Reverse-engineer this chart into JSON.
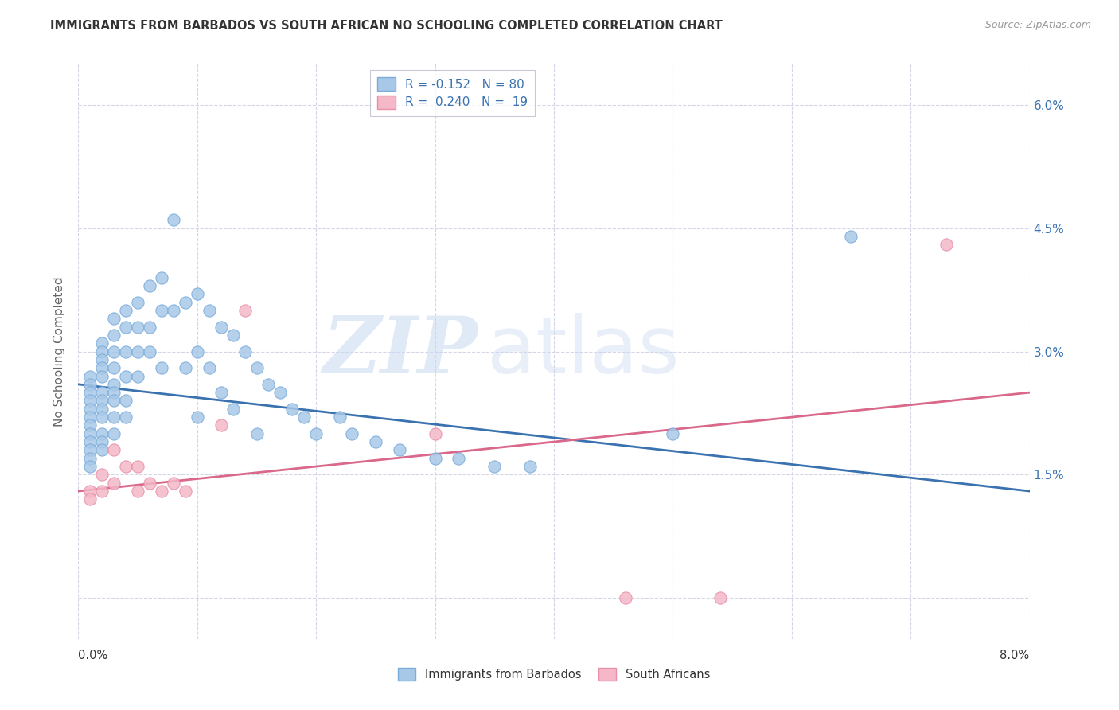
{
  "title": "IMMIGRANTS FROM BARBADOS VS SOUTH AFRICAN NO SCHOOLING COMPLETED CORRELATION CHART",
  "source": "Source: ZipAtlas.com",
  "ylabel": "No Schooling Completed",
  "xmin": 0.0,
  "xmax": 0.08,
  "ymin": -0.005,
  "ymax": 0.065,
  "blue_R": -0.152,
  "blue_N": 80,
  "pink_R": 0.24,
  "pink_N": 19,
  "blue_color": "#a8c8e8",
  "blue_edge_color": "#7aacda",
  "blue_line_color": "#3a72b0",
  "pink_color": "#f4b8c8",
  "pink_edge_color": "#e88faa",
  "pink_line_color": "#d9688a",
  "legend_text_color": "#3a72b0",
  "legend_label1": "R = -0.152   N = 80",
  "legend_label2": "R =  0.240   N =  19",
  "bottom_label1": "Immigrants from Barbados",
  "bottom_label2": "South Africans",
  "watermark_zip": "ZIP",
  "watermark_atlas": "atlas",
  "grid_color": "#d5d5e8",
  "background_color": "#ffffff",
  "right_ytick_vals": [
    0.0,
    0.015,
    0.03,
    0.045,
    0.06
  ],
  "right_yticklabels": [
    "",
    "1.5%",
    "3.0%",
    "4.5%",
    "6.0%"
  ],
  "xtick_vals": [
    0.0,
    0.01,
    0.02,
    0.03,
    0.04,
    0.05,
    0.06,
    0.07,
    0.08
  ],
  "blue_x": [
    0.001,
    0.001,
    0.001,
    0.001,
    0.001,
    0.001,
    0.001,
    0.001,
    0.001,
    0.001,
    0.001,
    0.001,
    0.002,
    0.002,
    0.002,
    0.002,
    0.002,
    0.002,
    0.002,
    0.002,
    0.002,
    0.002,
    0.002,
    0.002,
    0.003,
    0.003,
    0.003,
    0.003,
    0.003,
    0.003,
    0.003,
    0.003,
    0.003,
    0.004,
    0.004,
    0.004,
    0.004,
    0.004,
    0.004,
    0.005,
    0.005,
    0.005,
    0.005,
    0.006,
    0.006,
    0.006,
    0.007,
    0.007,
    0.007,
    0.008,
    0.008,
    0.009,
    0.009,
    0.01,
    0.01,
    0.01,
    0.011,
    0.011,
    0.012,
    0.012,
    0.013,
    0.013,
    0.014,
    0.015,
    0.015,
    0.016,
    0.017,
    0.018,
    0.019,
    0.02,
    0.022,
    0.023,
    0.025,
    0.027,
    0.03,
    0.032,
    0.035,
    0.038,
    0.05,
    0.065
  ],
  "blue_y": [
    0.027,
    0.026,
    0.025,
    0.024,
    0.023,
    0.022,
    0.021,
    0.02,
    0.019,
    0.018,
    0.017,
    0.016,
    0.031,
    0.03,
    0.029,
    0.028,
    0.027,
    0.025,
    0.024,
    0.023,
    0.022,
    0.02,
    0.019,
    0.018,
    0.034,
    0.032,
    0.03,
    0.028,
    0.026,
    0.025,
    0.024,
    0.022,
    0.02,
    0.035,
    0.033,
    0.03,
    0.027,
    0.024,
    0.022,
    0.036,
    0.033,
    0.03,
    0.027,
    0.038,
    0.033,
    0.03,
    0.039,
    0.035,
    0.028,
    0.046,
    0.035,
    0.036,
    0.028,
    0.037,
    0.03,
    0.022,
    0.035,
    0.028,
    0.033,
    0.025,
    0.032,
    0.023,
    0.03,
    0.028,
    0.02,
    0.026,
    0.025,
    0.023,
    0.022,
    0.02,
    0.022,
    0.02,
    0.019,
    0.018,
    0.017,
    0.017,
    0.016,
    0.016,
    0.02,
    0.044
  ],
  "pink_x": [
    0.001,
    0.001,
    0.002,
    0.002,
    0.003,
    0.003,
    0.004,
    0.005,
    0.005,
    0.006,
    0.007,
    0.008,
    0.009,
    0.012,
    0.014,
    0.03,
    0.046,
    0.054,
    0.073
  ],
  "pink_y": [
    0.013,
    0.012,
    0.015,
    0.013,
    0.018,
    0.014,
    0.016,
    0.016,
    0.013,
    0.014,
    0.013,
    0.014,
    0.013,
    0.021,
    0.035,
    0.02,
    0.0,
    0.0,
    0.043
  ],
  "blue_trend_x0": 0.0,
  "blue_trend_x1": 0.08,
  "blue_trend_y0": 0.026,
  "blue_trend_y1": 0.013,
  "pink_trend_x0": 0.0,
  "pink_trend_x1": 0.08,
  "pink_trend_y0": 0.013,
  "pink_trend_y1": 0.025
}
